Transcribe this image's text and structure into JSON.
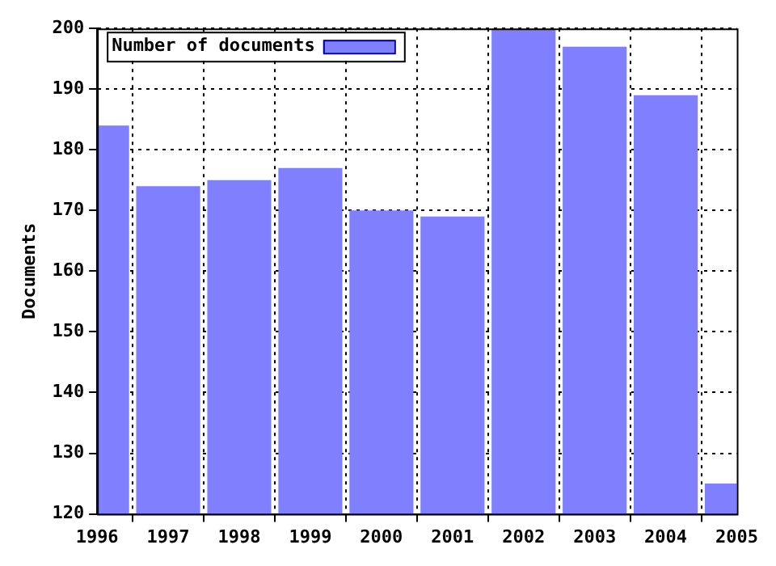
{
  "chart_data": {
    "type": "bar",
    "ylabel": "Documents",
    "x": [
      1996,
      1997,
      1998,
      1999,
      2000,
      2001,
      2002,
      2003,
      2004,
      2005
    ],
    "series": [
      {
        "name": "Number of documents",
        "color": "#8080ff",
        "values": [
          184,
          174,
          175,
          177,
          170,
          169,
          200,
          197,
          189,
          125
        ]
      }
    ],
    "xlim": [
      1996,
      2005
    ],
    "xticks": [
      1996,
      1997,
      1998,
      1999,
      2000,
      2001,
      2002,
      2003,
      2004,
      2005
    ],
    "ylim": [
      120,
      200
    ],
    "yticks": [
      120,
      130,
      140,
      150,
      160,
      170,
      180,
      190,
      200
    ],
    "grid": true,
    "legend": "top left"
  }
}
